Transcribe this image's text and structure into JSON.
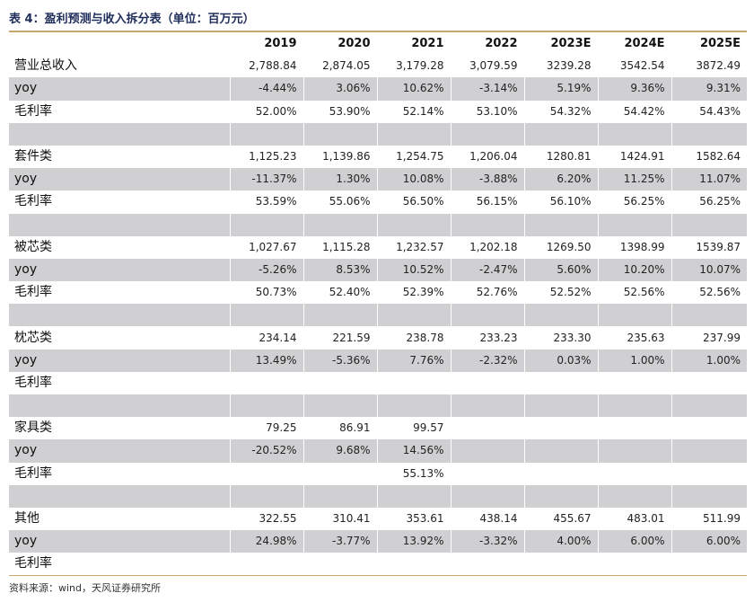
{
  "title": "表 4：盈利预测与收入拆分表（单位：百万元）",
  "header": {
    "label": "",
    "years": [
      "2019",
      "2020",
      "2021",
      "2022",
      "2023E",
      "2024E",
      "2025E"
    ]
  },
  "rows": [
    {
      "label": "营业总收入",
      "values": [
        "2,788.84",
        "2,874.05",
        "3,179.28",
        "3,079.59",
        "3239.28",
        "3542.54",
        "3872.49"
      ]
    },
    {
      "label": "yoy",
      "values": [
        "-4.44%",
        "3.06%",
        "10.62%",
        "-3.14%",
        "5.19%",
        "9.36%",
        "9.31%"
      ]
    },
    {
      "label": "毛利率",
      "values": [
        "52.00%",
        "53.90%",
        "52.14%",
        "53.10%",
        "54.32%",
        "54.42%",
        "54.43%"
      ]
    },
    {
      "label": "",
      "values": [
        "",
        "",
        "",
        "",
        "",
        "",
        ""
      ]
    },
    {
      "label": "套件类",
      "values": [
        "1,125.23",
        "1,139.86",
        "1,254.75",
        "1,206.04",
        "1280.81",
        "1424.91",
        "1582.64"
      ]
    },
    {
      "label": "yoy",
      "values": [
        "-11.37%",
        "1.30%",
        "10.08%",
        "-3.88%",
        "6.20%",
        "11.25%",
        "11.07%"
      ]
    },
    {
      "label": "毛利率",
      "values": [
        "53.59%",
        "55.06%",
        "56.50%",
        "56.15%",
        "56.10%",
        "56.25%",
        "56.25%"
      ]
    },
    {
      "label": "",
      "values": [
        "",
        "",
        "",
        "",
        "",
        "",
        ""
      ]
    },
    {
      "label": "被芯类",
      "values": [
        "1,027.67",
        "1,115.28",
        "1,232.57",
        "1,202.18",
        "1269.50",
        "1398.99",
        "1539.87"
      ]
    },
    {
      "label": "yoy",
      "values": [
        "-5.26%",
        "8.53%",
        "10.52%",
        "-2.47%",
        "5.60%",
        "10.20%",
        "10.07%"
      ]
    },
    {
      "label": "毛利率",
      "values": [
        "50.73%",
        "52.40%",
        "52.39%",
        "52.76%",
        "52.52%",
        "52.56%",
        "52.56%"
      ]
    },
    {
      "label": "",
      "values": [
        "",
        "",
        "",
        "",
        "",
        "",
        ""
      ]
    },
    {
      "label": "枕芯类",
      "values": [
        "234.14",
        "221.59",
        "238.78",
        "233.23",
        "233.30",
        "235.63",
        "237.99"
      ]
    },
    {
      "label": "yoy",
      "values": [
        "13.49%",
        "-5.36%",
        "7.76%",
        "-2.32%",
        "0.03%",
        "1.00%",
        "1.00%"
      ]
    },
    {
      "label": "毛利率",
      "values": [
        "",
        "",
        "",
        "",
        "",
        "",
        ""
      ]
    },
    {
      "label": "",
      "values": [
        "",
        "",
        "",
        "",
        "",
        "",
        ""
      ]
    },
    {
      "label": "家具类",
      "values": [
        "79.25",
        "86.91",
        "99.57",
        "",
        "",
        "",
        ""
      ]
    },
    {
      "label": "yoy",
      "values": [
        "-20.52%",
        "9.68%",
        "14.56%",
        "",
        "",
        "",
        ""
      ]
    },
    {
      "label": "毛利率",
      "values": [
        "",
        "",
        "55.13%",
        "",
        "",
        "",
        ""
      ]
    },
    {
      "label": "",
      "values": [
        "",
        "",
        "",
        "",
        "",
        "",
        ""
      ]
    },
    {
      "label": "其他",
      "values": [
        "322.55",
        "310.41",
        "353.61",
        "438.14",
        "455.67",
        "483.01",
        "511.99"
      ]
    },
    {
      "label": "yoy",
      "values": [
        "24.98%",
        "-3.77%",
        "13.92%",
        "-3.32%",
        "4.00%",
        "6.00%",
        "6.00%"
      ]
    },
    {
      "label": "毛利率",
      "values": [
        "",
        "",
        "",
        "",
        "",
        "",
        ""
      ]
    }
  ],
  "source": "资料来源：wind，天风证券研究所",
  "colors": {
    "shade": "#d0d0d2",
    "rule": "#c8a86e",
    "title": "#1f2d5a"
  }
}
